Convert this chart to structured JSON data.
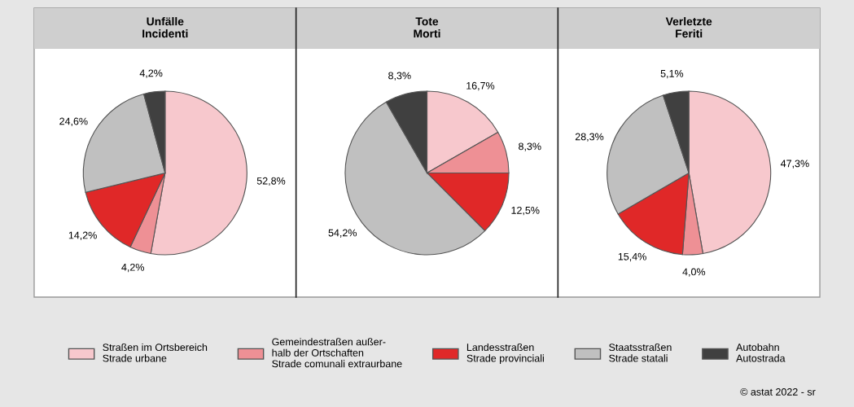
{
  "chart_data": [
    {
      "type": "pie",
      "title": "Unfälle\nIncidenti",
      "categories": [
        "Straßen im Ortsbereich\nStrade urbane",
        "Gemeindestraßen außer-\nhalb der Ortschaften\nStrade comunali extraurbane",
        "Landesstraßen\nStrade provinciali",
        "Staatsstraßen\nStrade statali",
        "Autobahn\nAutostrada"
      ],
      "values": [
        52.8,
        4.2,
        14.2,
        24.6,
        4.2
      ],
      "value_labels": [
        "52,8%",
        "4,2%",
        "14,2%",
        "24,6%",
        "4,2%"
      ],
      "colors": [
        "#f7c8cd",
        "#ee9095",
        "#e02828",
        "#c0c0c0",
        "#404040"
      ],
      "legend": "bottom"
    },
    {
      "type": "pie",
      "title": "Tote\nMorti",
      "values": [
        16.7,
        8.3,
        12.5,
        54.2,
        8.3
      ],
      "value_labels": [
        "16,7%",
        "8,3%",
        "12,5%",
        "54,2%",
        "8,3%"
      ],
      "colors": [
        "#f7c8cd",
        "#ee9095",
        "#e02828",
        "#c0c0c0",
        "#404040"
      ]
    },
    {
      "type": "pie",
      "title": "Verletzte\nFeriti",
      "values": [
        47.3,
        4.0,
        15.4,
        28.3,
        5.1
      ],
      "value_labels": [
        "47,3%",
        "4,0%",
        "15,4%",
        "28,3%",
        "5,1%"
      ],
      "colors": [
        "#f7c8cd",
        "#ee9095",
        "#e02828",
        "#c0c0c0",
        "#404040"
      ],
      "annotations": [
        "© astat 2022 - sr"
      ]
    }
  ]
}
